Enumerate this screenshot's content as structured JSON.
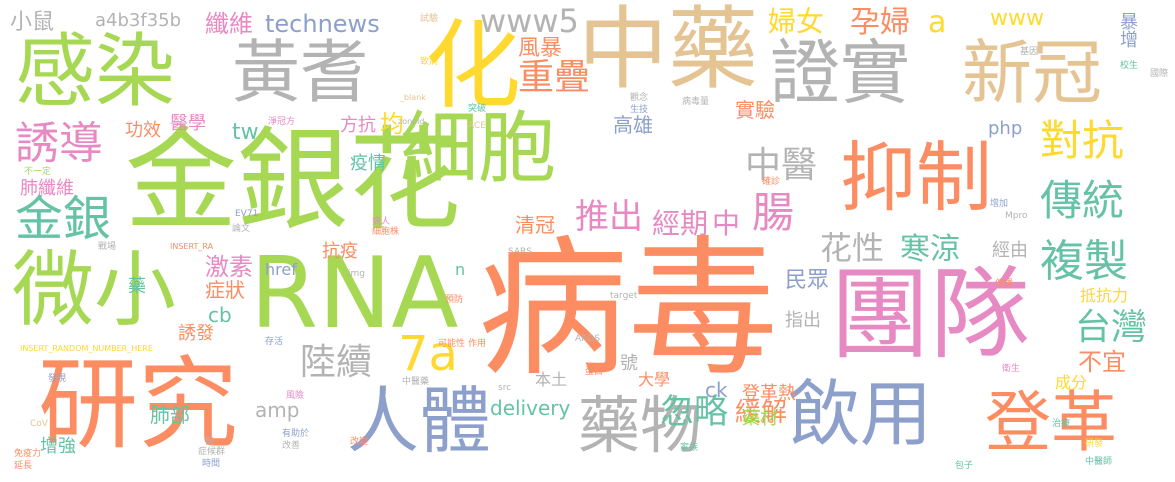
{
  "colors": {
    "green": "#a6d854",
    "orange": "#fc8d62",
    "blue": "#8da0cb",
    "pink": "#e78ac3",
    "gray": "#b3b3b3",
    "tan": "#e5c494",
    "yellow": "#ffd92f",
    "teal": "#66c2a5"
  },
  "words": [
    {
      "text": "病毒",
      "color": "orange"
    },
    {
      "text": "RNA",
      "color": "green"
    },
    {
      "text": "金銀花",
      "color": "green"
    },
    {
      "text": "細胞",
      "color": "green"
    },
    {
      "text": "團隊",
      "color": "pink"
    },
    {
      "text": "研究",
      "color": "orange"
    },
    {
      "text": "中藥",
      "color": "tan"
    },
    {
      "text": "感染",
      "color": "green"
    },
    {
      "text": "證實",
      "color": "gray"
    },
    {
      "text": "新冠",
      "color": "tan"
    },
    {
      "text": "抑制",
      "color": "orange"
    },
    {
      "text": "微小",
      "color": "green"
    },
    {
      "text": "黃耆",
      "color": "gray"
    },
    {
      "text": "化",
      "color": "yellow"
    },
    {
      "text": "人體",
      "color": "blue"
    },
    {
      "text": "藥物",
      "color": "gray"
    },
    {
      "text": "飲用",
      "color": "blue"
    },
    {
      "text": "登革",
      "color": "orange"
    },
    {
      "text": "金銀",
      "color": "teal"
    },
    {
      "text": "誘導",
      "color": "pink"
    },
    {
      "text": "複製",
      "color": "teal"
    },
    {
      "text": "傳統",
      "color": "teal"
    },
    {
      "text": "對抗",
      "color": "yellow"
    },
    {
      "text": "台灣",
      "color": "teal"
    },
    {
      "text": "7a",
      "color": "yellow"
    },
    {
      "text": "www5",
      "color": "gray"
    },
    {
      "text": "重疊",
      "color": "orange"
    },
    {
      "text": "推出",
      "color": "pink"
    },
    {
      "text": "經期",
      "color": "pink"
    },
    {
      "text": "中",
      "color": "pink"
    },
    {
      "text": "腸",
      "color": "pink"
    },
    {
      "text": "中醫",
      "color": "gray"
    },
    {
      "text": "花性",
      "color": "gray"
    },
    {
      "text": "寒涼",
      "color": "teal"
    },
    {
      "text": "陸續",
      "color": "gray"
    },
    {
      "text": "忽略",
      "color": "teal"
    },
    {
      "text": "緩解",
      "color": "orange"
    },
    {
      "text": "婦女",
      "color": "yellow"
    },
    {
      "text": "孕婦",
      "color": "orange"
    },
    {
      "text": "a",
      "color": "yellow"
    },
    {
      "text": "www",
      "color": "yellow"
    },
    {
      "text": "暴增",
      "color": "blue"
    },
    {
      "text": "technews",
      "color": "blue"
    },
    {
      "text": "纖維",
      "color": "pink"
    },
    {
      "text": "風暴",
      "color": "orange"
    },
    {
      "text": "高雄",
      "color": "blue"
    },
    {
      "text": "實驗",
      "color": "orange"
    },
    {
      "text": "a4b3f35b",
      "color": "gray"
    },
    {
      "text": "小鼠",
      "color": "gray"
    },
    {
      "text": "肺纖維",
      "color": "pink"
    },
    {
      "text": "功效",
      "color": "orange"
    },
    {
      "text": "醫學",
      "color": "pink"
    },
    {
      "text": "tw",
      "color": "teal"
    },
    {
      "text": "方抗",
      "color": "pink"
    },
    {
      "text": "均",
      "color": "yellow"
    },
    {
      "text": "php",
      "color": "blue"
    },
    {
      "text": "疫情",
      "color": "teal"
    },
    {
      "text": "清冠",
      "color": "orange"
    },
    {
      "text": "激素",
      "color": "pink"
    },
    {
      "text": "症狀",
      "color": "orange"
    },
    {
      "text": "href",
      "color": "blue"
    },
    {
      "text": "抗疫",
      "color": "orange"
    },
    {
      "text": "經由",
      "color": "gray"
    },
    {
      "text": "民眾",
      "color": "blue"
    },
    {
      "text": "不宜",
      "color": "orange"
    },
    {
      "text": "抵抗力",
      "color": "yellow"
    },
    {
      "text": "cb",
      "color": "teal"
    },
    {
      "text": "誘發",
      "color": "orange"
    },
    {
      "text": "指出",
      "color": "gray"
    },
    {
      "text": "號",
      "color": "gray"
    },
    {
      "text": "amp",
      "color": "gray"
    },
    {
      "text": "delivery",
      "color": "teal"
    },
    {
      "text": "本土",
      "color": "gray"
    },
    {
      "text": "大學",
      "color": "orange"
    },
    {
      "text": "ck",
      "color": "blue"
    },
    {
      "text": "登革熱",
      "color": "orange"
    },
    {
      "text": "藥材",
      "color": "green"
    },
    {
      "text": "成分",
      "color": "yellow"
    },
    {
      "text": "肺部",
      "color": "teal"
    },
    {
      "text": "增強",
      "color": "teal"
    },
    {
      "text": "藥",
      "color": "teal"
    },
    {
      "text": "n",
      "color": "teal"
    },
    {
      "text": "試驗",
      "color": "tan"
    },
    {
      "text": "不一定",
      "color": "green"
    },
    {
      "text": "_blank",
      "color": "tan"
    },
    {
      "text": "zoneid",
      "color": "gray"
    },
    {
      "text": "ACE",
      "color": "tan"
    },
    {
      "text": "INSERT_RA",
      "color": "orange"
    },
    {
      "text": "INSERT_RANDOM_NUMBER_HERE",
      "color": "yellow"
    },
    {
      "text": "EV71",
      "color": "blue"
    },
    {
      "text": "SARS",
      "color": "gray"
    },
    {
      "text": "ARDS",
      "color": "gray"
    },
    {
      "text": "CoV",
      "color": "tan"
    },
    {
      "text": "img",
      "color": "gray"
    },
    {
      "text": "src",
      "color": "gray"
    },
    {
      "text": "target",
      "color": "gray"
    },
    {
      "text": "Mpro",
      "color": "gray"
    },
    {
      "text": "病毒量",
      "color": "gray"
    },
    {
      "text": "蛋白",
      "color": "orange"
    },
    {
      "text": "中醫藥",
      "color": "gray"
    },
    {
      "text": "中醫師",
      "color": "teal"
    },
    {
      "text": "免疫力",
      "color": "orange"
    },
    {
      "text": "論文",
      "color": "gray"
    },
    {
      "text": "戰場",
      "color": "gray"
    },
    {
      "text": "發現",
      "color": "blue"
    },
    {
      "text": "預防",
      "color": "orange"
    },
    {
      "text": "病人",
      "color": "pink"
    },
    {
      "text": "延長",
      "color": "orange"
    },
    {
      "text": "時間",
      "color": "blue"
    },
    {
      "text": "前",
      "color": "gray"
    },
    {
      "text": "症候群",
      "color": "gray"
    },
    {
      "text": "有助於",
      "color": "blue"
    },
    {
      "text": "改善",
      "color": "gray"
    },
    {
      "text": "改變",
      "color": "orange"
    },
    {
      "text": "風險",
      "color": "pink"
    },
    {
      "text": "可能性",
      "color": "orange"
    },
    {
      "text": "作用",
      "color": "orange"
    },
    {
      "text": "存活",
      "color": "blue"
    },
    {
      "text": "致病",
      "color": "yellow"
    },
    {
      "text": "確診",
      "color": "orange"
    },
    {
      "text": "治療",
      "color": "teal"
    },
    {
      "text": "衛生",
      "color": "pink"
    },
    {
      "text": "國際",
      "color": "gray"
    },
    {
      "text": "基因",
      "color": "gray"
    },
    {
      "text": "研發",
      "color": "yellow"
    },
    {
      "text": "校生",
      "color": "teal"
    },
    {
      "text": "觀念",
      "color": "gray"
    },
    {
      "text": "生技",
      "color": "blue"
    },
    {
      "text": "增加",
      "color": "blue"
    },
    {
      "text": "傳播",
      "color": "orange"
    },
    {
      "text": "突破",
      "color": "teal"
    },
    {
      "text": "細胞株",
      "color": "orange"
    },
    {
      "text": "淨冠方",
      "color": "pink"
    },
    {
      "text": "包子",
      "color": "teal"
    },
    {
      "text": "家族",
      "color": "teal"
    }
  ]
}
